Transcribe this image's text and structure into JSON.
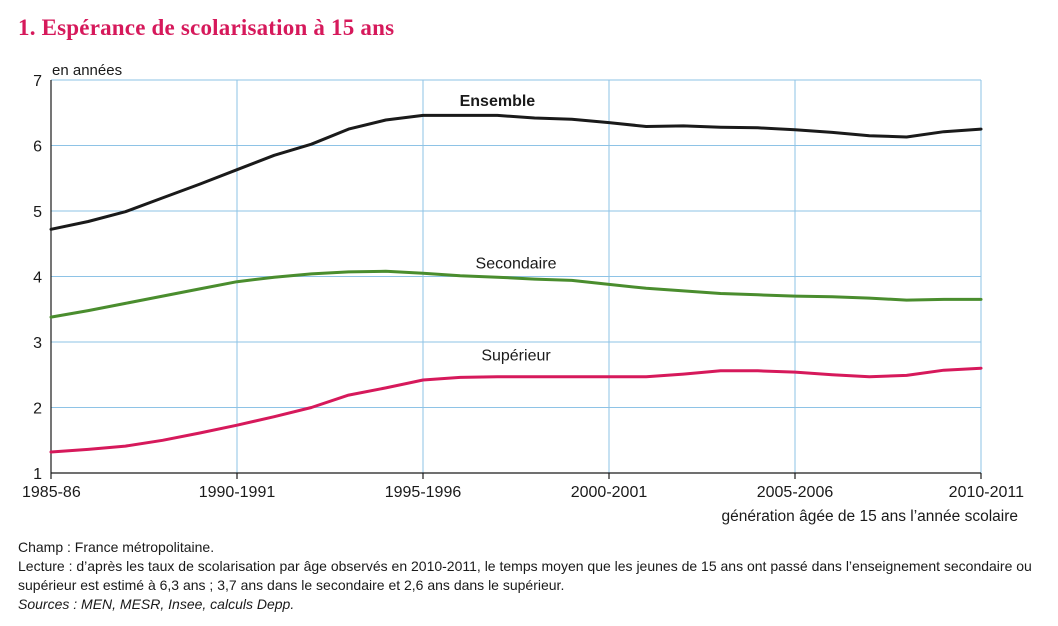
{
  "title": "1. Espérance de scolarisation à 15 ans",
  "chart_data": {
    "type": "line",
    "ylabel": "en années",
    "xlabel": "génération âgée de 15 ans l’année scolaire",
    "ylim": [
      1,
      7
    ],
    "yticks": [
      "1",
      "2",
      "3",
      "4",
      "5",
      "6",
      "7"
    ],
    "xlim": [
      1985,
      2010
    ],
    "xticks": [
      {
        "x": 1985,
        "label": "1985-86"
      },
      {
        "x": 1990,
        "label": "1990-1991"
      },
      {
        "x": 1995,
        "label": "1995-1996"
      },
      {
        "x": 2000,
        "label": "2000-2001"
      },
      {
        "x": 2005,
        "label": "2005-2006"
      },
      {
        "x": 2010,
        "label": "2010-2011"
      }
    ],
    "grid": true,
    "x": [
      1985,
      1986,
      1987,
      1988,
      1989,
      1990,
      1991,
      1992,
      1993,
      1994,
      1995,
      1996,
      1997,
      1998,
      1999,
      2000,
      2001,
      2002,
      2003,
      2004,
      2005,
      2006,
      2007,
      2008,
      2009,
      2010
    ],
    "series": [
      {
        "name": "Ensemble",
        "color": "#1a1a1a",
        "label_x": 1997,
        "label_y": 6.6,
        "bold": true,
        "values": [
          4.72,
          4.84,
          4.99,
          5.2,
          5.41,
          5.63,
          5.85,
          6.02,
          6.25,
          6.39,
          6.46,
          6.46,
          6.46,
          6.42,
          6.4,
          6.35,
          6.29,
          6.3,
          6.28,
          6.27,
          6.24,
          6.2,
          6.15,
          6.13,
          6.21,
          6.25
        ]
      },
      {
        "name": "Secondaire",
        "color": "#4a8d2e",
        "label_x": 1997.5,
        "label_y": 4.12,
        "bold": false,
        "values": [
          3.38,
          3.48,
          3.59,
          3.7,
          3.81,
          3.92,
          3.99,
          4.04,
          4.07,
          4.08,
          4.05,
          4.01,
          3.99,
          3.96,
          3.94,
          3.88,
          3.82,
          3.78,
          3.74,
          3.72,
          3.7,
          3.69,
          3.67,
          3.64,
          3.65,
          3.65
        ]
      },
      {
        "name": "Supérieur",
        "color": "#d6195b",
        "label_x": 1997.5,
        "label_y": 2.72,
        "bold": false,
        "values": [
          1.32,
          1.36,
          1.41,
          1.5,
          1.61,
          1.73,
          1.86,
          2.0,
          2.19,
          2.3,
          2.42,
          2.46,
          2.47,
          2.47,
          2.47,
          2.47,
          2.47,
          2.51,
          2.56,
          2.56,
          2.54,
          2.5,
          2.47,
          2.49,
          2.57,
          2.6
        ]
      }
    ]
  },
  "notes": {
    "champ": "Champ : France métropolitaine.",
    "lecture": "Lecture : d’après les taux de scolarisation par âge observés en 2010-2011, le temps moyen que les jeunes de 15 ans ont passé dans l’enseignement secondaire ou supérieur est estimé à 6,3 ans ; 3,7 ans dans le secondaire et 2,6 ans dans le supérieur.",
    "sources": "Sources : MEN, MESR, Insee, calculs Depp."
  }
}
